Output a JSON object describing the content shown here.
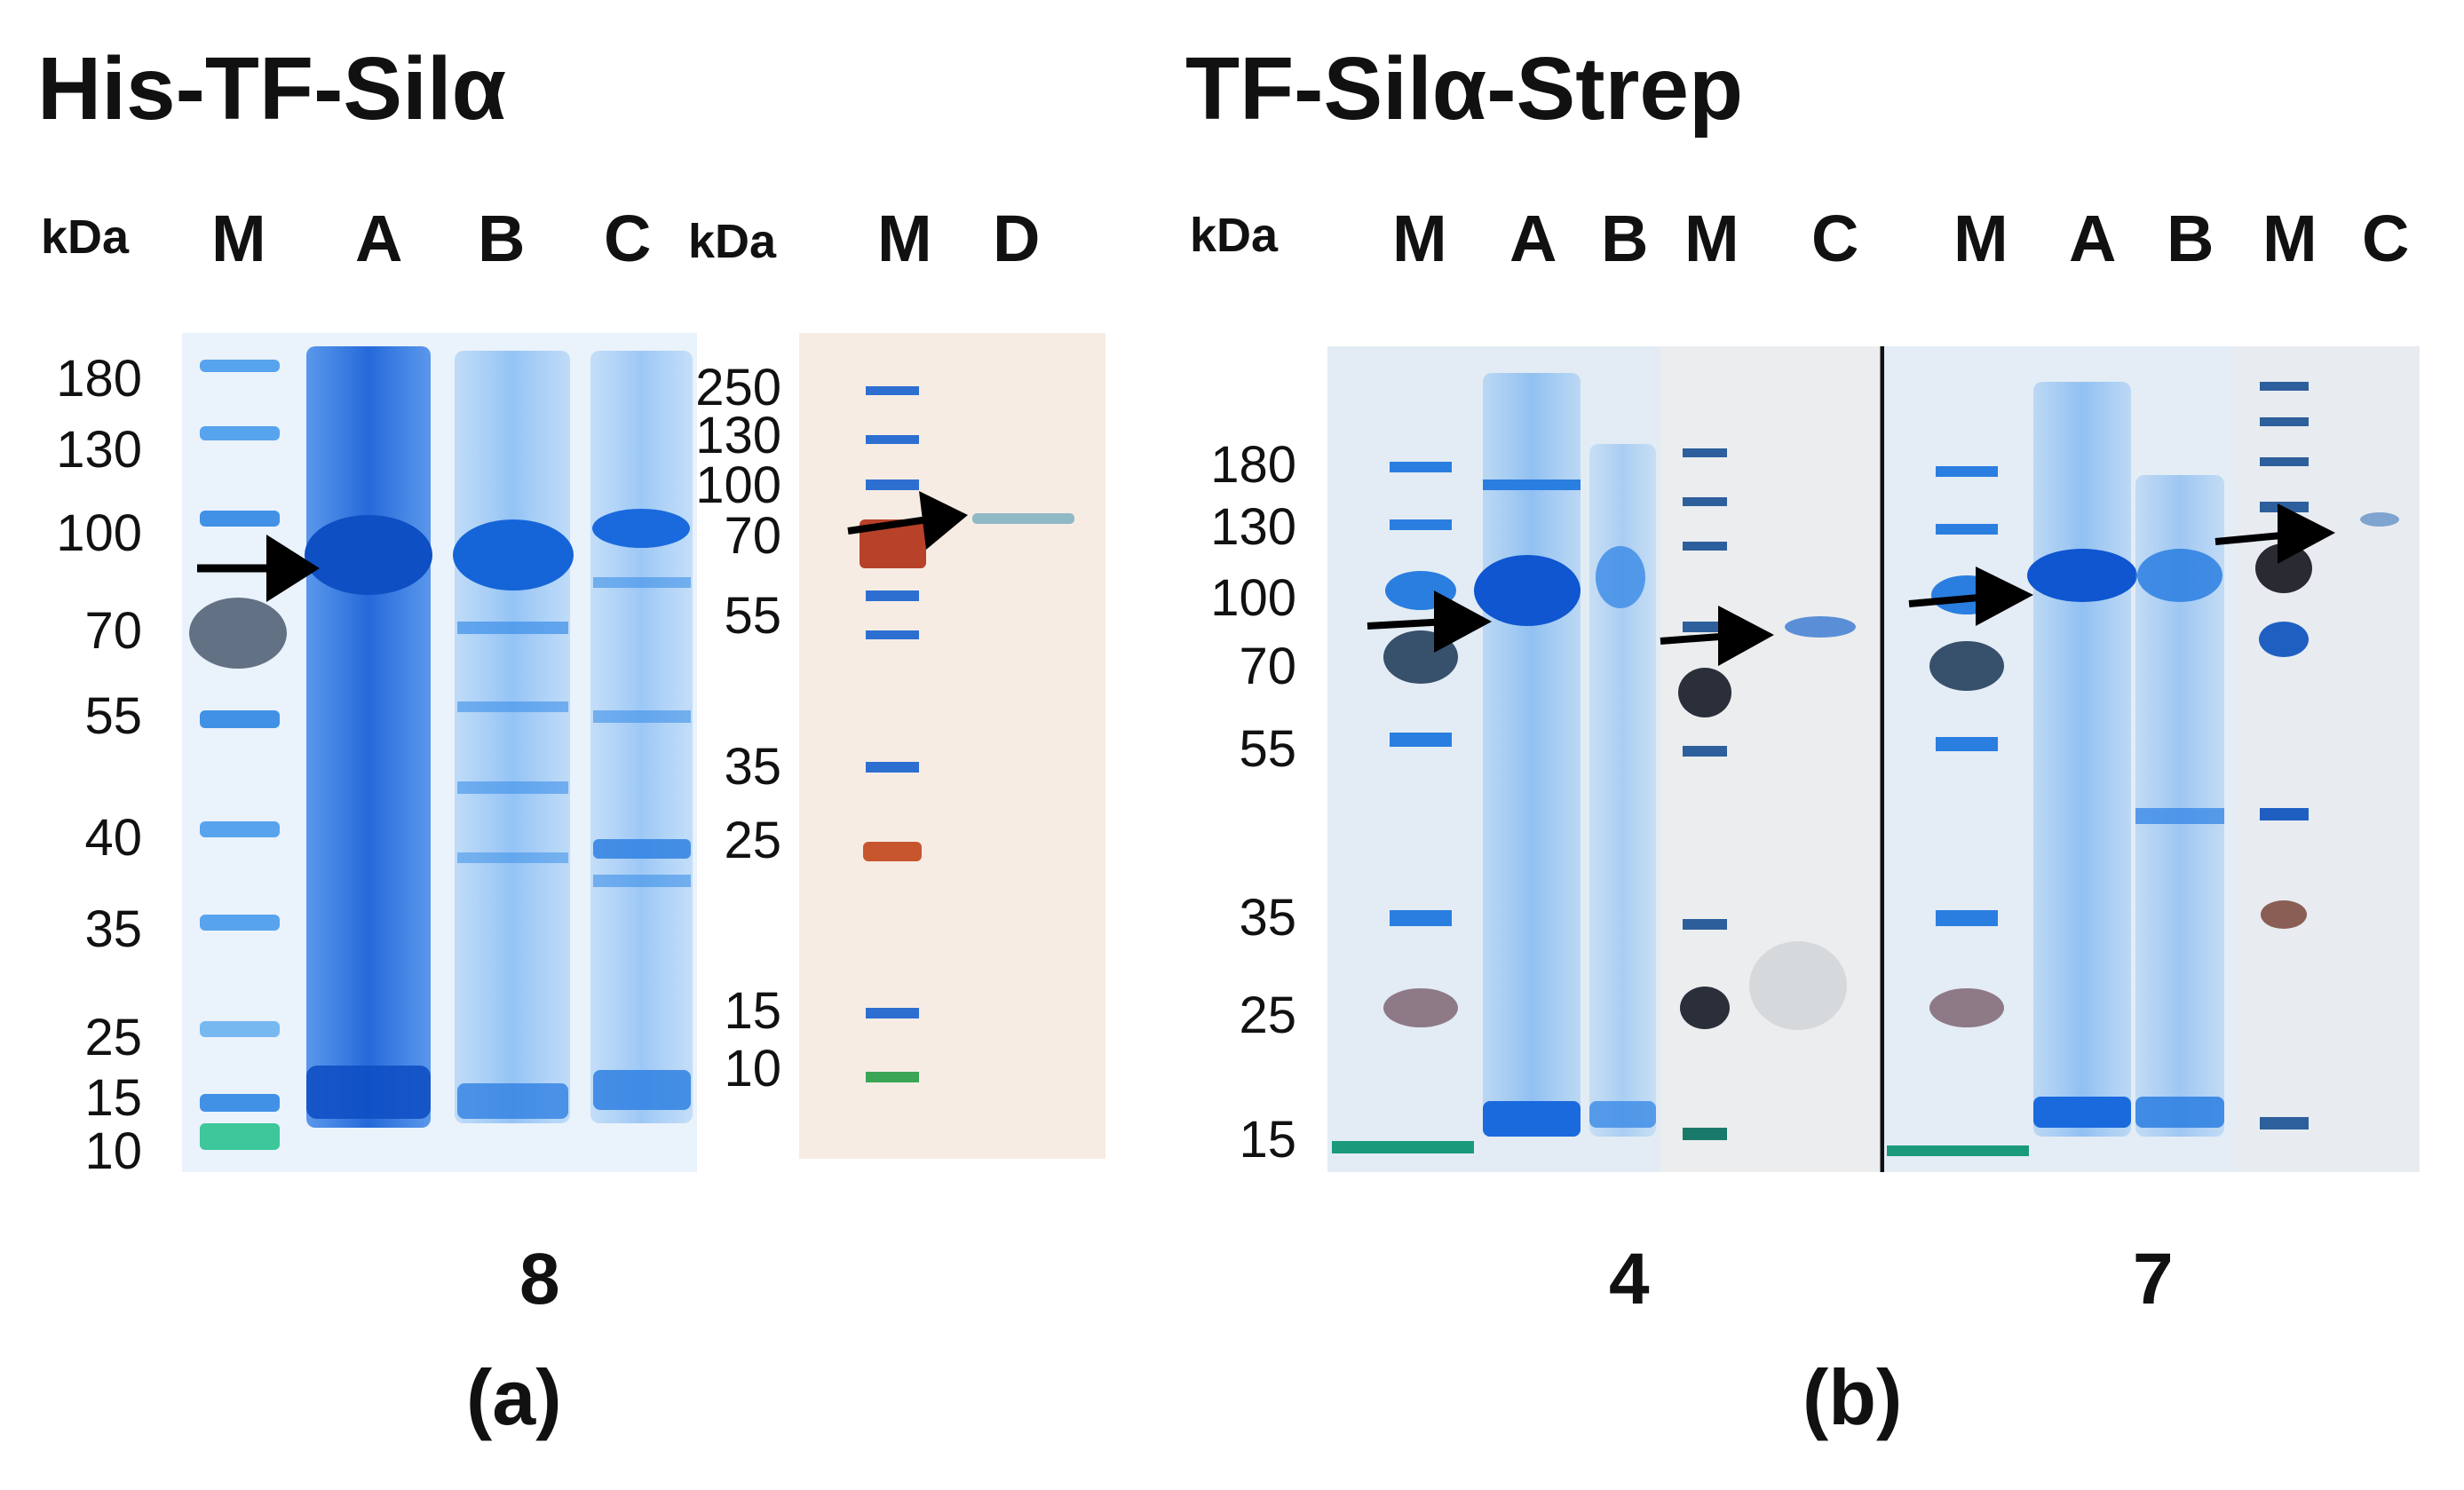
{
  "panel_a": {
    "title": "His-TF-Silα",
    "unit_label_1": "kDa",
    "unit_label_2": "kDa",
    "lanes_left": [
      "M",
      "A",
      "B",
      "C"
    ],
    "lanes_right": [
      "M",
      "D"
    ],
    "markers_left": [
      "180",
      "130",
      "100",
      "70",
      "55",
      "40",
      "35",
      "25",
      "15",
      "10"
    ],
    "markers_right": [
      "250",
      "130",
      "100",
      "70",
      "55",
      "35",
      "25",
      "15",
      "10"
    ],
    "number": "8",
    "label": "(a)"
  },
  "panel_b": {
    "title": "TF-Silα-Strep",
    "unit_label": "kDa",
    "lanes_group1": [
      "M",
      "A",
      "B",
      "M",
      "C"
    ],
    "lanes_group2": [
      "M",
      "A",
      "B",
      "M",
      "C"
    ],
    "markers": [
      "180",
      "130",
      "100",
      "70",
      "55",
      "35",
      "25",
      "15"
    ],
    "number_1": "4",
    "number_2": "7",
    "label": "(b)"
  },
  "colors": {
    "coomassie": "#1a6fe0",
    "marker_red": "#c0452a",
    "marker_green": "#2fae5a",
    "gel_bg_a": "#e8f1fa",
    "membrane_bg": "#f6ece4",
    "gel_bg_b": "#e6eef6",
    "arrow": "#000000"
  },
  "icons": [
    "arrow-icon"
  ]
}
